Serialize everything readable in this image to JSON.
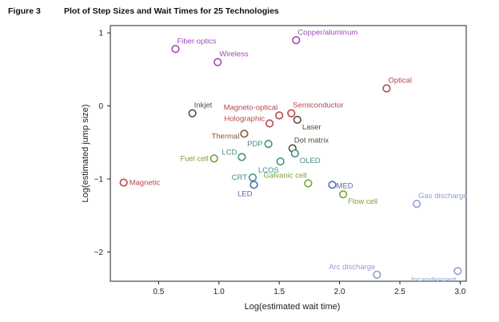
{
  "figure": {
    "number": "Figure 3",
    "title": "Plot of Step Sizes and Wait Times for 25 Technologies"
  },
  "chart_data": {
    "type": "scatter",
    "title": "Plot of Step Sizes and Wait Times for 25 Technologies",
    "xlabel": "Log(estimated wait time)",
    "ylabel": "Log(estimated jump size)",
    "xlim": [
      0.1,
      3.05
    ],
    "ylim": [
      -2.4,
      1.1
    ],
    "xticks": [
      0.5,
      1.0,
      1.5,
      2.0,
      2.5,
      3.0
    ],
    "xtick_labels": [
      "0.5",
      "1.0",
      "1.5",
      "2.0",
      "2.5",
      "3.0"
    ],
    "yticks": [
      1,
      0,
      -1,
      -2
    ],
    "ytick_labels": [
      "1",
      "0",
      "−1",
      "−2"
    ],
    "colors": {
      "red": "#b5474c",
      "dark": "#5a4a3c",
      "brown": "#8a5a3a",
      "teal": "#3f8f85",
      "green": "#7aa03a",
      "blue": "#5a6bb0",
      "lightblue": "#8f9fd0",
      "purple": "#a24ab8"
    },
    "points": [
      {
        "name": "Magnetic",
        "x": 0.21,
        "y": -1.05,
        "color": "#b5474c",
        "pos": "right"
      },
      {
        "name": "Fiber optics",
        "x": 0.64,
        "y": 0.78,
        "color": "#a24ab8",
        "pos": "above-right"
      },
      {
        "name": "Wireless",
        "x": 0.99,
        "y": 0.6,
        "color": "#a24ab8",
        "pos": "above-right"
      },
      {
        "name": "Copper/aluminum",
        "x": 1.64,
        "y": 0.9,
        "color": "#a24ab8",
        "pos": "above-right"
      },
      {
        "name": "Optical",
        "x": 2.39,
        "y": 0.24,
        "color": "#b5474c",
        "pos": "above-right"
      },
      {
        "name": "Inkjet",
        "x": 0.78,
        "y": -0.1,
        "color": "#5a4a3c",
        "pos": "above-right"
      },
      {
        "name": "Magneto-optical",
        "x": 1.5,
        "y": -0.13,
        "color": "#b5474c",
        "pos": "above-left"
      },
      {
        "name": "Semiconductor",
        "x": 1.6,
        "y": -0.1,
        "color": "#b5474c",
        "pos": "above-right"
      },
      {
        "name": "Holographic",
        "x": 1.42,
        "y": -0.24,
        "color": "#b5474c",
        "pos": "left-up"
      },
      {
        "name": "Laser",
        "x": 1.65,
        "y": -0.19,
        "color": "#5a4a3c",
        "pos": "below-right"
      },
      {
        "name": "Thermal",
        "x": 1.21,
        "y": -0.38,
        "color": "#8a5a3a",
        "pos": "left-down"
      },
      {
        "name": "Dot matrix",
        "x": 1.61,
        "y": -0.58,
        "color": "#5a4a3c",
        "pos": "above-right"
      },
      {
        "name": "PDP",
        "x": 1.41,
        "y": -0.52,
        "color": "#3f8f85",
        "pos": "left"
      },
      {
        "name": "LCD",
        "x": 1.19,
        "y": -0.7,
        "color": "#3f8f85",
        "pos": "left-up"
      },
      {
        "name": "OLED",
        "x": 1.63,
        "y": -0.65,
        "color": "#3f8f85",
        "pos": "below-right"
      },
      {
        "name": "Fuel cell",
        "x": 0.96,
        "y": -0.72,
        "color": "#7aa03a",
        "pos": "left"
      },
      {
        "name": "LCOS",
        "x": 1.51,
        "y": -0.76,
        "color": "#3f8f85",
        "pos": "below-left"
      },
      {
        "name": "CRT",
        "x": 1.28,
        "y": -0.98,
        "color": "#3f8f85",
        "pos": "left"
      },
      {
        "name": "Galvanic cell",
        "x": 1.74,
        "y": -1.06,
        "color": "#7aa03a",
        "pos": "above-left"
      },
      {
        "name": "LED",
        "x": 1.29,
        "y": -1.08,
        "color": "#5a6bb0",
        "pos": "below-left"
      },
      {
        "name": "MED",
        "x": 1.94,
        "y": -1.08,
        "color": "#5a6bb0",
        "pos": "right-tight"
      },
      {
        "name": "Flow cell",
        "x": 2.03,
        "y": -1.21,
        "color": "#7aa03a",
        "pos": "below-right"
      },
      {
        "name": "Gas discharge",
        "x": 2.64,
        "y": -1.34,
        "color": "#8f9fd0",
        "pos": "above-right"
      },
      {
        "name": "Arc discharge",
        "x": 2.31,
        "y": -2.31,
        "color": "#8f9fd0",
        "pos": "above-left"
      },
      {
        "name": "Incandescent",
        "x": 2.98,
        "y": -2.26,
        "color": "#8f9fd0",
        "pos": "below-left"
      }
    ]
  }
}
